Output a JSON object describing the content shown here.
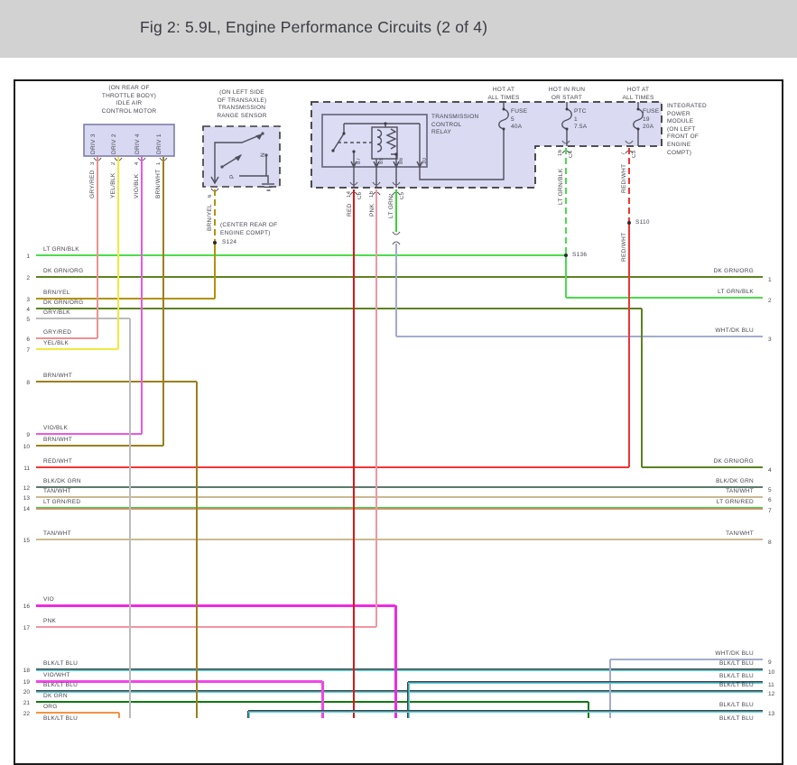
{
  "page": {
    "title": "Fig 2: 5.9L, Engine Performance Circuits (2 of 4)"
  },
  "colors": {
    "LT GRN/BLK": "#4cdc4c",
    "DK GRN/ORG": "#5d8221",
    "BRN/YEL": "#b29204",
    "GRY/BLK": "#bcbcbc",
    "GRY/RED": "#ec9292",
    "YEL/BLK": "#f2e93e",
    "BRN/WHT": "#9d7e1c",
    "VIO/BLK": "#e959e1",
    "RED/WHT": "#f23535",
    "BLK/DK GRN": "#5c7a6b",
    "TAN/WHT": "#cbb992",
    "LT GRN/RED": [
      "#3ecf3e",
      "#f2837a"
    ],
    "VIO": "#ee2cdf",
    "PNK": "#f295a4",
    "BLK/LT BLU": [
      "#3c4646",
      "#5ed2e2"
    ],
    "VIO/WHT": "#f046e6",
    "DK GRN": "#0f7a10",
    "ORG": "#f29441",
    "RED": "#de1616",
    "LT GRN": "#35d435",
    "WHT/DK BLU": "#a3abce"
  },
  "components": {
    "iacm": {
      "location": "(ON REAR OF\nTHROTTLE BODY)",
      "name": "IDLE AIR\nCONTROL MOTOR",
      "pins": [
        {
          "label": "DRIV 3",
          "number": "3",
          "wire": "GRY/RED"
        },
        {
          "label": "DRIV 2",
          "number": "2",
          "wire": "YEL/BLK"
        },
        {
          "label": "DRIV 4",
          "number": "4",
          "wire": "VIO/BLK"
        },
        {
          "label": "DRIV 1",
          "number": "1",
          "wire": "BRN/WHT"
        }
      ]
    },
    "range_sensor": {
      "location": "(ON LEFT SIDE\nOF TRANSAXLE)",
      "name": "TRANSMISSION\nRANGE SENSOR",
      "contacts": [
        "N",
        "P"
      ],
      "pin": {
        "number": "6",
        "wire": "BRN/YEL"
      }
    },
    "relay": {
      "name": "TRANSMISSION\nCONTROL\nRELAY",
      "pins": [
        "87",
        "85",
        "86",
        "30"
      ],
      "outputs": [
        {
          "pin": "14",
          "connector": "C6",
          "wire": "RED"
        },
        {
          "pin": "16",
          "connector": "",
          "wire": "PNK"
        },
        {
          "pin": "2",
          "connector": "C5",
          "wire": "LT GRN"
        }
      ]
    },
    "ipm": {
      "name": "INTEGRATED\nPOWER\nMODULE\n(ON LEFT\nFRONT OF\nENGINE\nCOMPT)",
      "feeds": [
        {
          "hot": "HOT AT\nALL TIMES",
          "fuse": "FUSE\n5\n40A",
          "pin": "",
          "connector": "",
          "wire": ""
        },
        {
          "hot": "HOT IN RUN\nOR START",
          "fuse": "PTC\n1\n7.5A",
          "pin": "16",
          "connector": "C4",
          "wire": "LT GRN/BLK"
        },
        {
          "hot": "HOT AT\nALL TIMES",
          "fuse": "FUSE\n19\n20A",
          "pin": "7",
          "connector": "C3",
          "wire": "RED/WHT",
          "wire_below": "RED/WHT"
        }
      ]
    }
  },
  "splices": [
    {
      "id": "S124",
      "note": "(CENTER REAR OF\nENGINE COMPT)"
    },
    {
      "id": "S136",
      "note": ""
    },
    {
      "id": "S110",
      "note": ""
    }
  ],
  "left_rows": [
    {
      "n": "1",
      "label": "LT GRN/BLK"
    },
    {
      "n": "2",
      "label": "DK GRN/ORG"
    },
    {
      "n": "3",
      "label": "BRN/YEL"
    },
    {
      "n": "4",
      "label": "DK GRN/ORG"
    },
    {
      "n": "5",
      "label": "GRY/BLK"
    },
    {
      "n": "6",
      "label": "GRY/RED"
    },
    {
      "n": "7",
      "label": "YEL/BLK"
    },
    {
      "n": "8",
      "label": "BRN/WHT"
    },
    {
      "n": "9",
      "label": "VIO/BLK"
    },
    {
      "n": "10",
      "label": "BRN/WHT"
    },
    {
      "n": "11",
      "label": "RED/WHT"
    },
    {
      "n": "12",
      "label": "BLK/DK GRN"
    },
    {
      "n": "13",
      "label": "TAN/WHT"
    },
    {
      "n": "14",
      "label": "LT GRN/RED"
    },
    {
      "n": "15",
      "label": "TAN/WHT"
    },
    {
      "n": "16",
      "label": "VIO"
    },
    {
      "n": "17",
      "label": "PNK"
    },
    {
      "n": "18",
      "label": "BLK/LT BLU"
    },
    {
      "n": "19",
      "label": "VIO/WHT"
    },
    {
      "n": "20",
      "label": "BLK/LT BLU"
    },
    {
      "n": "21",
      "label": "DK GRN"
    },
    {
      "n": "22",
      "label": "ORG"
    },
    {
      "n": "",
      "label": "BLK/LT BLU"
    }
  ],
  "right_rows": [
    {
      "n": "1",
      "label": "DK GRN/ORG"
    },
    {
      "n": "2",
      "label": "LT GRN/BLK"
    },
    {
      "n": "3",
      "label": "WHT/DK BLU"
    },
    {
      "n": "4",
      "label": "DK GRN/ORG"
    },
    {
      "n": "5",
      "label": "BLK/DK GRN"
    },
    {
      "n": "6",
      "label": "TAN/WHT"
    },
    {
      "n": "7",
      "label": "LT GRN/RED"
    },
    {
      "n": "8",
      "label": "TAN/WHT"
    },
    {
      "n": "9",
      "label": "WHT/DK BLU"
    },
    {
      "n": "10",
      "label": "BLK/LT BLU"
    },
    {
      "n": "11",
      "label": "BLK/LT BLU"
    },
    {
      "n": "12",
      "label": "BLK/LT BLU"
    },
    {
      "n": "13",
      "label": "BLK/LT BLU"
    },
    {
      "n": "",
      "label": "BLK/LT BLU"
    }
  ]
}
